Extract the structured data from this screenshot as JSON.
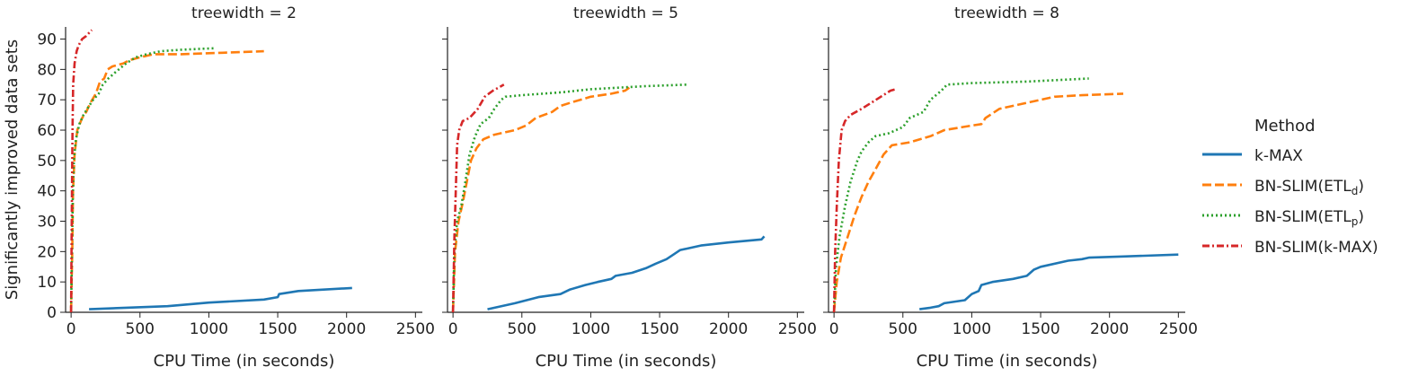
{
  "chart_data": {
    "type": "line",
    "xlabel": "CPU Time (in seconds)",
    "ylabel": "Significantly improved data sets",
    "xlim": [
      -40,
      2550
    ],
    "ylim": [
      0,
      94
    ],
    "xticks": [
      0,
      500,
      1000,
      1500,
      2000,
      2500
    ],
    "yticks": [
      0,
      10,
      20,
      30,
      40,
      50,
      60,
      70,
      80,
      90
    ],
    "legend": {
      "title": "Method",
      "position": "right",
      "entries": [
        {
          "label": "k-MAX",
          "base": "k-MAX",
          "sub": "",
          "close": "",
          "color": "#1f77b4",
          "dash": "solid"
        },
        {
          "label": "BN-SLIM(ETLd)",
          "base": "BN-SLIM(ETL",
          "sub": "d",
          "close": ")",
          "color": "#ff7f0e",
          "dash": "dashed"
        },
        {
          "label": "BN-SLIM(ETLp)",
          "base": "BN-SLIM(ETL",
          "sub": "p",
          "close": ")",
          "color": "#2ca02c",
          "dash": "dotted"
        },
        {
          "label": "BN-SLIM(k-MAX)",
          "base": "BN-SLIM(k-MAX)",
          "sub": "",
          "close": "",
          "color": "#d62728",
          "dash": "dashdot"
        }
      ]
    },
    "panels": [
      {
        "title": "treewidth = 2",
        "series": [
          {
            "name": "k-MAX",
            "points": [
              [
                130,
                1
              ],
              [
                400,
                1.5
              ],
              [
                700,
                2
              ],
              [
                1000,
                3.2
              ],
              [
                1400,
                4.2
              ],
              [
                1500,
                5
              ],
              [
                1510,
                6
              ],
              [
                1650,
                7
              ],
              [
                2040,
                8
              ]
            ]
          },
          {
            "name": "BN-SLIM(ETLd)",
            "points": [
              [
                0,
                0
              ],
              [
                8,
                20
              ],
              [
                14,
                40
              ],
              [
                25,
                52
              ],
              [
                45,
                60
              ],
              [
                80,
                64
              ],
              [
                110,
                66
              ],
              [
                140,
                69
              ],
              [
                180,
                72
              ],
              [
                210,
                76
              ],
              [
                240,
                77
              ],
              [
                265,
                80
              ],
              [
                300,
                81
              ],
              [
                380,
                82
              ],
              [
                420,
                83
              ],
              [
                500,
                84
              ],
              [
                600,
                85
              ],
              [
                800,
                85
              ],
              [
                1100,
                85.5
              ],
              [
                1400,
                86
              ]
            ]
          },
          {
            "name": "BN-SLIM(ETLp)",
            "points": [
              [
                0,
                0
              ],
              [
                6,
                20
              ],
              [
                12,
                38
              ],
              [
                20,
                50
              ],
              [
                35,
                57
              ],
              [
                60,
                62
              ],
              [
                90,
                65
              ],
              [
                130,
                68
              ],
              [
                160,
                70
              ],
              [
                200,
                72
              ],
              [
                230,
                75
              ],
              [
                270,
                77
              ],
              [
                320,
                79
              ],
              [
                400,
                82
              ],
              [
                470,
                84
              ],
              [
                550,
                85
              ],
              [
                650,
                86
              ],
              [
                800,
                86.5
              ],
              [
                1050,
                87
              ]
            ]
          },
          {
            "name": "BN-SLIM(k-MAX)",
            "points": [
              [
                0,
                0
              ],
              [
                3,
                20
              ],
              [
                6,
                40
              ],
              [
                10,
                60
              ],
              [
                15,
                75
              ],
              [
                25,
                82
              ],
              [
                40,
                86
              ],
              [
                55,
                88
              ],
              [
                80,
                90
              ],
              [
                110,
                91
              ],
              [
                150,
                93
              ]
            ]
          }
        ]
      },
      {
        "title": "treewidth = 5",
        "series": [
          {
            "name": "k-MAX",
            "points": [
              [
                250,
                1
              ],
              [
                450,
                3
              ],
              [
                620,
                5
              ],
              [
                780,
                6
              ],
              [
                850,
                7.5
              ],
              [
                960,
                9
              ],
              [
                1050,
                10
              ],
              [
                1150,
                11
              ],
              [
                1180,
                12
              ],
              [
                1300,
                13
              ],
              [
                1400,
                14.5
              ],
              [
                1470,
                16
              ],
              [
                1550,
                17.5
              ],
              [
                1600,
                19
              ],
              [
                1650,
                20.5
              ],
              [
                1700,
                21
              ],
              [
                1800,
                22
              ],
              [
                2000,
                23
              ],
              [
                2240,
                24
              ],
              [
                2260,
                25
              ]
            ]
          },
          {
            "name": "BN-SLIM(ETLd)",
            "points": [
              [
                0,
                0
              ],
              [
                15,
                20
              ],
              [
                40,
                30
              ],
              [
                70,
                36
              ],
              [
                100,
                43
              ],
              [
                130,
                50
              ],
              [
                170,
                54
              ],
              [
                220,
                57
              ],
              [
                300,
                58.5
              ],
              [
                450,
                60
              ],
              [
                530,
                61.5
              ],
              [
                600,
                64
              ],
              [
                720,
                66
              ],
              [
                780,
                68
              ],
              [
                850,
                69
              ],
              [
                1000,
                71
              ],
              [
                1150,
                72
              ],
              [
                1250,
                73
              ],
              [
                1280,
                74
              ]
            ]
          },
          {
            "name": "BN-SLIM(ETLp)",
            "points": [
              [
                0,
                0
              ],
              [
                10,
                20
              ],
              [
                30,
                30
              ],
              [
                60,
                35
              ],
              [
                90,
                43
              ],
              [
                120,
                52
              ],
              [
                160,
                58
              ],
              [
                200,
                62
              ],
              [
                260,
                64
              ],
              [
                300,
                67
              ],
              [
                350,
                70
              ],
              [
                380,
                71
              ],
              [
                500,
                71.5
              ],
              [
                800,
                72.5
              ],
              [
                1000,
                73.5
              ],
              [
                1400,
                74.5
              ],
              [
                1700,
                75
              ]
            ]
          },
          {
            "name": "BN-SLIM(k-MAX)",
            "points": [
              [
                0,
                0
              ],
              [
                10,
                25
              ],
              [
                20,
                40
              ],
              [
                30,
                55
              ],
              [
                45,
                60
              ],
              [
                70,
                63
              ],
              [
                120,
                64
              ],
              [
                180,
                67
              ],
              [
                230,
                71
              ],
              [
                290,
                73
              ],
              [
                330,
                74
              ],
              [
                370,
                75
              ]
            ]
          }
        ]
      },
      {
        "title": "treewidth = 8",
        "series": [
          {
            "name": "k-MAX",
            "points": [
              [
                620,
                1
              ],
              [
                700,
                1.5
              ],
              [
                760,
                2
              ],
              [
                800,
                3
              ],
              [
                950,
                4
              ],
              [
                1000,
                6
              ],
              [
                1050,
                7
              ],
              [
                1070,
                9
              ],
              [
                1150,
                10
              ],
              [
                1300,
                11
              ],
              [
                1400,
                12
              ],
              [
                1450,
                14
              ],
              [
                1500,
                15
              ],
              [
                1700,
                17
              ],
              [
                1800,
                17.5
              ],
              [
                1850,
                18
              ],
              [
                2100,
                18.4
              ],
              [
                2500,
                19
              ]
            ]
          },
          {
            "name": "BN-SLIM(ETLd)",
            "points": [
              [
                0,
                0
              ],
              [
                20,
                10
              ],
              [
                50,
                18
              ],
              [
                100,
                25
              ],
              [
                150,
                32
              ],
              [
                200,
                38
              ],
              [
                250,
                43
              ],
              [
                300,
                47
              ],
              [
                360,
                52
              ],
              [
                420,
                55
              ],
              [
                550,
                56
              ],
              [
                700,
                58
              ],
              [
                800,
                60
              ],
              [
                1000,
                61.5
              ],
              [
                1070,
                62
              ],
              [
                1100,
                64
              ],
              [
                1200,
                67
              ],
              [
                1400,
                69
              ],
              [
                1600,
                71
              ],
              [
                1800,
                71.5
              ],
              [
                2100,
                72
              ]
            ]
          },
          {
            "name": "BN-SLIM(ETLp)",
            "points": [
              [
                0,
                0
              ],
              [
                15,
                15
              ],
              [
                40,
                25
              ],
              [
                80,
                35
              ],
              [
                120,
                43
              ],
              [
                170,
                50
              ],
              [
                200,
                53
              ],
              [
                250,
                56
              ],
              [
                300,
                58
              ],
              [
                400,
                59
              ],
              [
                500,
                61
              ],
              [
                550,
                64
              ],
              [
                650,
                66
              ],
              [
                700,
                70
              ],
              [
                780,
                73
              ],
              [
                820,
                75
              ],
              [
                1000,
                75.5
              ],
              [
                1400,
                76
              ],
              [
                1850,
                77
              ]
            ]
          },
          {
            "name": "BN-SLIM(k-MAX)",
            "points": [
              [
                0,
                0
              ],
              [
                8,
                20
              ],
              [
                20,
                35
              ],
              [
                35,
                50
              ],
              [
                55,
                60
              ],
              [
                80,
                63
              ],
              [
                120,
                65
              ],
              [
                200,
                67
              ],
              [
                270,
                69
              ],
              [
                340,
                71
              ],
              [
                410,
                73
              ],
              [
                450,
                73.5
              ]
            ]
          }
        ]
      }
    ]
  }
}
